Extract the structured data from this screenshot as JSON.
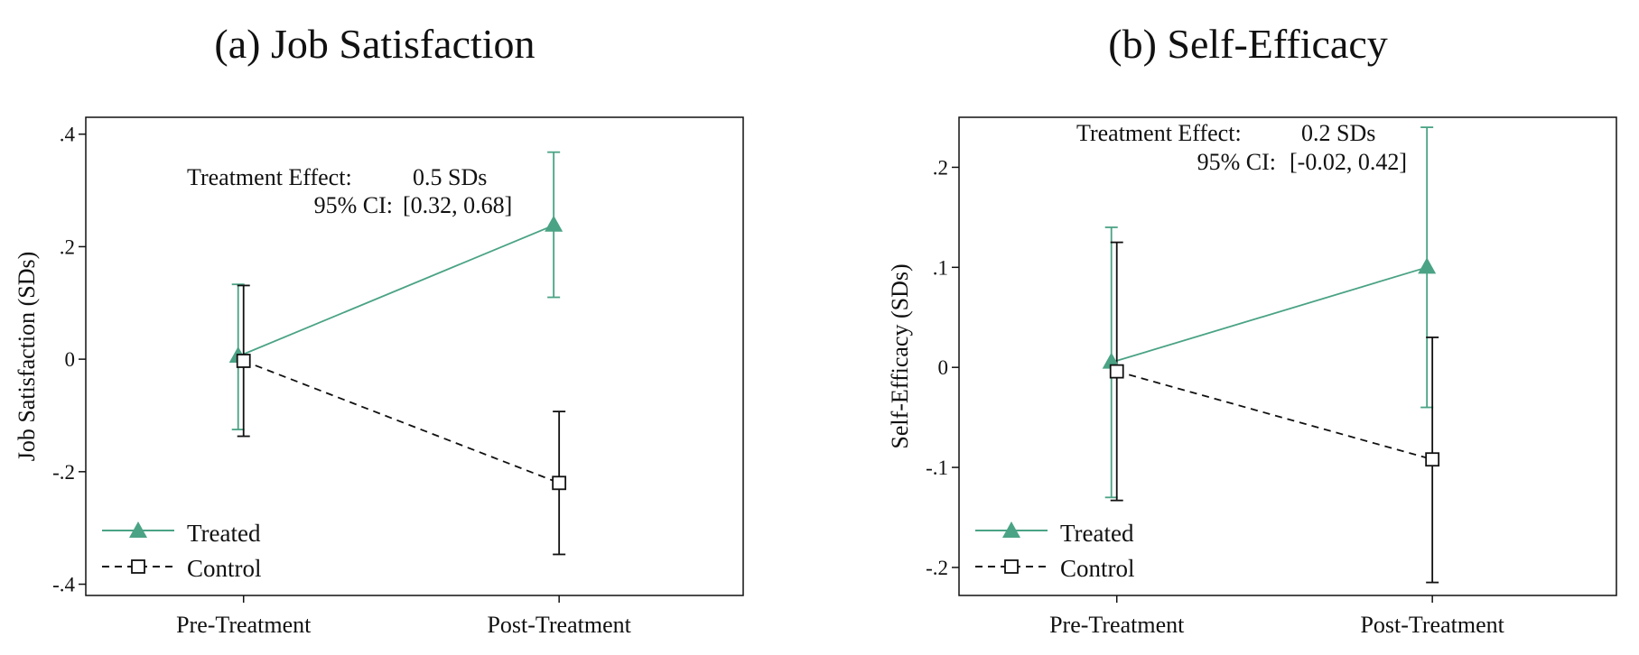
{
  "chart_data": [
    {
      "type": "line",
      "title": "(a) Job Satisfaction",
      "ylabel": "Job Satisfaction (SDs)",
      "xlabel": "",
      "categories": [
        "Pre-Treatment",
        "Post-Treatment"
      ],
      "ylim": [
        -0.42,
        0.43
      ],
      "yticks": [
        -0.4,
        -0.2,
        0,
        0.2,
        0.4
      ],
      "ytick_labels": [
        "-.4",
        "-.2",
        "0",
        ".2",
        ".4"
      ],
      "annotation": {
        "effect_label": "Treatment Effect:",
        "effect_value": "0.5 SDs",
        "ci_label": "95% CI:",
        "ci_value": "[0.32, 0.68]"
      },
      "series": [
        {
          "name": "Treated",
          "color": "#4aa384",
          "dash": "solid",
          "marker": "triangle",
          "values": [
            0.005,
            0.238
          ],
          "ci_low": [
            -0.125,
            0.11
          ],
          "ci_high": [
            0.133,
            0.368
          ]
        },
        {
          "name": "Control",
          "color": "#111111",
          "dash": "dashed",
          "marker": "square",
          "values": [
            -0.003,
            -0.22
          ],
          "ci_low": [
            -0.137,
            -0.347
          ],
          "ci_high": [
            0.131,
            -0.093
          ]
        }
      ],
      "legend": "bottom-left"
    },
    {
      "type": "line",
      "title": "(b) Self-Efficacy",
      "ylabel": "Self-Efficacy (SDs)",
      "xlabel": "",
      "categories": [
        "Pre-Treatment",
        "Post-Treatment"
      ],
      "ylim": [
        -0.228,
        0.25
      ],
      "yticks": [
        -0.2,
        -0.1,
        0,
        0.1,
        0.2
      ],
      "ytick_labels": [
        "-.2",
        "-.1",
        "0",
        ".1",
        ".2"
      ],
      "annotation": {
        "effect_label": "Treatment Effect:",
        "effect_value": "0.2 SDs",
        "ci_label": "95% CI:",
        "ci_value": "[-0.02, 0.42]"
      },
      "series": [
        {
          "name": "Treated",
          "color": "#4aa384",
          "dash": "solid",
          "marker": "triangle",
          "values": [
            0.005,
            0.1
          ],
          "ci_low": [
            -0.13,
            -0.04
          ],
          "ci_high": [
            0.14,
            0.24
          ]
        },
        {
          "name": "Control",
          "color": "#111111",
          "dash": "dashed",
          "marker": "square",
          "values": [
            -0.004,
            -0.092
          ],
          "ci_low": [
            -0.133,
            -0.215
          ],
          "ci_high": [
            0.125,
            0.03
          ]
        }
      ],
      "legend": "bottom-left"
    }
  ]
}
